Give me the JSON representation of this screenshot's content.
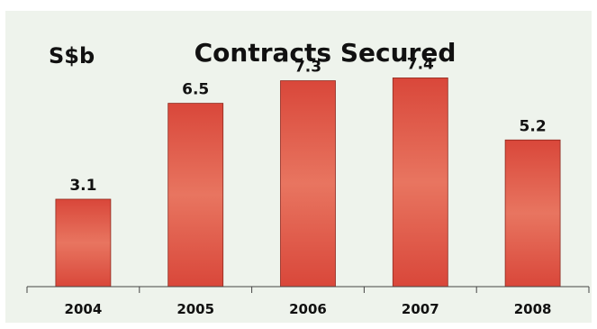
{
  "chart_data": {
    "type": "bar",
    "title": "Contracts Secured",
    "unit_label": "S$b",
    "categories": [
      "2004",
      "2005",
      "2006",
      "2007",
      "2008"
    ],
    "values": [
      3.1,
      6.5,
      7.3,
      7.4,
      5.2
    ],
    "value_labels": [
      "3.1",
      "6.5",
      "7.3",
      "7.4",
      "5.2"
    ],
    "ylim": [
      0,
      8.5
    ],
    "grid": false,
    "legend": "none",
    "bar_color": "#d9473a",
    "bar_highlight": "#e87560",
    "background": "#eef3ec"
  }
}
